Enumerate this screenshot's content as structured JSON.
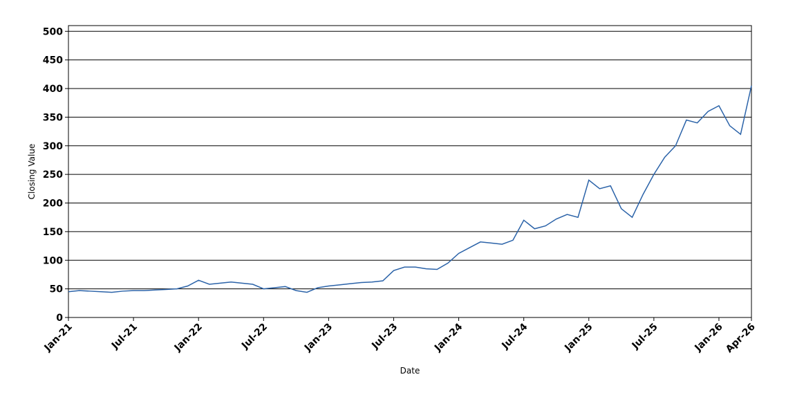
{
  "chart_data": {
    "type": "line",
    "x_label": "Date",
    "y_label": "Closing Value",
    "x": [
      "2021-01",
      "2021-02",
      "2021-03",
      "2021-04",
      "2021-05",
      "2021-06",
      "2021-07",
      "2021-08",
      "2021-09",
      "2021-10",
      "2021-11",
      "2021-12",
      "2022-01",
      "2022-02",
      "2022-03",
      "2022-04",
      "2022-05",
      "2022-06",
      "2022-07",
      "2022-08",
      "2022-09",
      "2022-10",
      "2022-11",
      "2022-12",
      "2023-01",
      "2023-02",
      "2023-03",
      "2023-04",
      "2023-05",
      "2023-06",
      "2023-07",
      "2023-08",
      "2023-09",
      "2023-10",
      "2023-11",
      "2023-12",
      "2024-01",
      "2024-02",
      "2024-03",
      "2024-04",
      "2024-05",
      "2024-06",
      "2024-07",
      "2024-08",
      "2024-09",
      "2024-10",
      "2024-11",
      "2024-12",
      "2025-01",
      "2025-02",
      "2025-03",
      "2025-04",
      "2025-05",
      "2025-06",
      "2025-07",
      "2025-08",
      "2025-09",
      "2025-10",
      "2025-11",
      "2025-12",
      "2026-01",
      "2026-02",
      "2026-03",
      "2026-04"
    ],
    "series": [
      {
        "name": "Closing Value",
        "color": "#2a62a8",
        "values": [
          45,
          47,
          46,
          45,
          44,
          46,
          47,
          47,
          48,
          49,
          50,
          55,
          65,
          58,
          60,
          62,
          60,
          58,
          50,
          52,
          54,
          47,
          44,
          52,
          55,
          57,
          59,
          61,
          62,
          64,
          82,
          88,
          88,
          85,
          84,
          95,
          112,
          122,
          132,
          130,
          128,
          135,
          170,
          155,
          160,
          172,
          180,
          175,
          240,
          225,
          230,
          190,
          175,
          215,
          250,
          280,
          300,
          345,
          340,
          360,
          370,
          335,
          320,
          405
        ]
      }
    ],
    "xlim": [
      "2021-01",
      "2026-04"
    ],
    "xticks": [
      {
        "value": "2021-01",
        "label": "Jan-21"
      },
      {
        "value": "2021-07",
        "label": "Jul-21"
      },
      {
        "value": "2022-01",
        "label": "Jan-22"
      },
      {
        "value": "2022-07",
        "label": "Jul-22"
      },
      {
        "value": "2023-01",
        "label": "Jan-23"
      },
      {
        "value": "2023-07",
        "label": "Jul-23"
      },
      {
        "value": "2024-01",
        "label": "Jan-24"
      },
      {
        "value": "2024-07",
        "label": "Jul-24"
      },
      {
        "value": "2025-01",
        "label": "Jan-25"
      },
      {
        "value": "2025-07",
        "label": "Jul-25"
      },
      {
        "value": "2026-01",
        "label": "Jan-26"
      },
      {
        "value": "2026-04",
        "label": "Apr-26"
      }
    ],
    "ylim": [
      0,
      510
    ],
    "yticks": [
      0,
      50,
      100,
      150,
      200,
      250,
      300,
      350,
      400,
      450,
      500
    ],
    "grid": true
  }
}
